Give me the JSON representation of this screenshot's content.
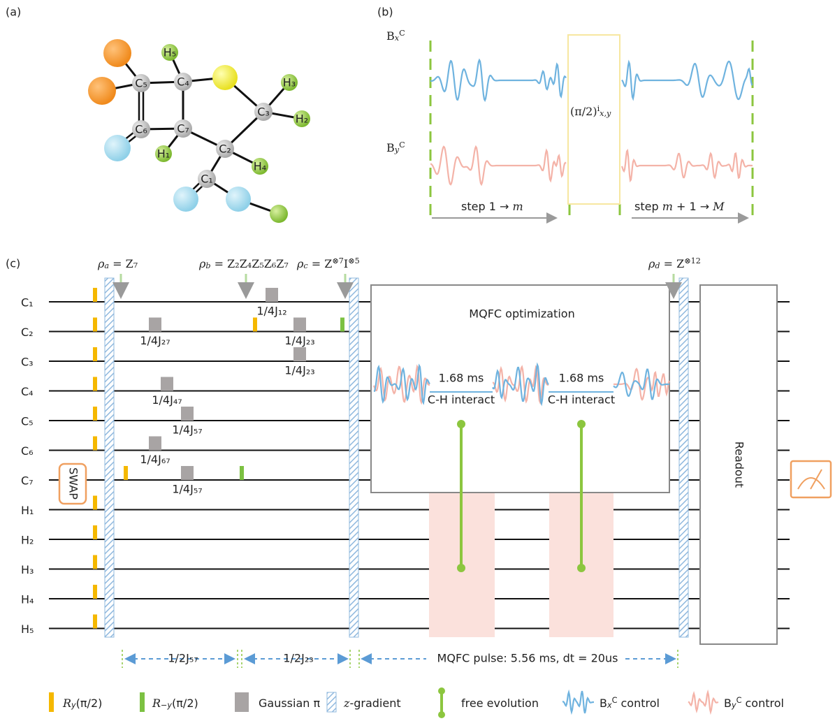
{
  "panels": {
    "a": "(a)",
    "b": "(b)",
    "c": "(c)"
  },
  "molecule": {
    "atoms": [
      "C₅",
      "C₄",
      "C₆",
      "C₇",
      "C₂",
      "C₃",
      "C₁",
      "H₅",
      "H₃",
      "H₂",
      "H₁",
      "H₄"
    ]
  },
  "panel_b": {
    "bx": [
      {
        "text": "B"
      },
      {
        "sub": "x"
      },
      {
        "sup": "C"
      }
    ],
    "by": [
      {
        "text": "B"
      },
      {
        "sub": "y"
      },
      {
        "sup": "C"
      }
    ],
    "pulse": [
      {
        "text": "(π/2)"
      },
      {
        "sup": "i"
      },
      {
        "sub": "x,y"
      }
    ],
    "step1": [
      {
        "text": "step 1 → "
      },
      {
        "it": "m"
      }
    ],
    "step2": [
      {
        "text": "step "
      },
      {
        "it": "m"
      },
      {
        "text": " + 1 → "
      },
      {
        "it": "M"
      }
    ]
  },
  "circuit": {
    "qubits": [
      "C₁",
      "C₂",
      "C₃",
      "C₄",
      "C₅",
      "C₆",
      "C₇",
      "H₁",
      "H₂",
      "H₃",
      "H₄",
      "H₅"
    ],
    "states": [
      [
        {
          "it": "ρ"
        },
        {
          "sub": "a"
        },
        {
          "text": " = Z₇"
        }
      ],
      [
        {
          "it": "ρ"
        },
        {
          "sub": "b"
        },
        {
          "text": " = Z₂Z₄Z₅Z₆Z₇"
        }
      ],
      [
        {
          "it": "ρ"
        },
        {
          "sub": "c"
        },
        {
          "text": " = Z"
        },
        {
          "sup": "⊗7"
        },
        {
          "text": "I"
        },
        {
          "sup": "⊗5"
        }
      ],
      [
        {
          "it": "ρ"
        },
        {
          "sub": "d"
        },
        {
          "text": " = Z"
        },
        {
          "sup": "⊗12"
        }
      ]
    ],
    "gates": [
      "1/4J₁₂",
      "1/4J₂₇",
      "1/4J₂₃",
      "1/4J₂₃",
      "1/4J₄₇",
      "1/4J₅₇",
      "1/4J₆₇",
      "1/4J₅₇"
    ],
    "swap": "SWAP",
    "mqfc_title": "MQFC optimization",
    "delays": [
      "1.68 ms",
      "1.68 ms"
    ],
    "interact": [
      "C-H interact",
      "C-H interact"
    ],
    "readout": "Readout",
    "timings": [
      "1/2J₅₇",
      "1/2J₂₃",
      "MQFC pulse: 5.56 ms, dt = 20us"
    ]
  },
  "legend": [
    [
      {
        "it": "R"
      },
      {
        "sub": "y"
      },
      {
        "text": "(π/2)"
      }
    ],
    [
      {
        "it": "R"
      },
      {
        "sub": "−y"
      },
      {
        "text": "(π/2)"
      }
    ],
    [
      {
        "text": "Gaussian π"
      }
    ],
    [
      {
        "it": "z"
      },
      {
        "text": "-gradient"
      }
    ],
    [
      {
        "text": "free evolution"
      }
    ],
    [
      {
        "text": "B"
      },
      {
        "sub": "x"
      },
      {
        "sup": "C"
      },
      {
        "text": " control"
      }
    ],
    [
      {
        "text": "B"
      },
      {
        "sub": "y"
      },
      {
        "sup": "C"
      },
      {
        "text": " control"
      }
    ]
  ]
}
